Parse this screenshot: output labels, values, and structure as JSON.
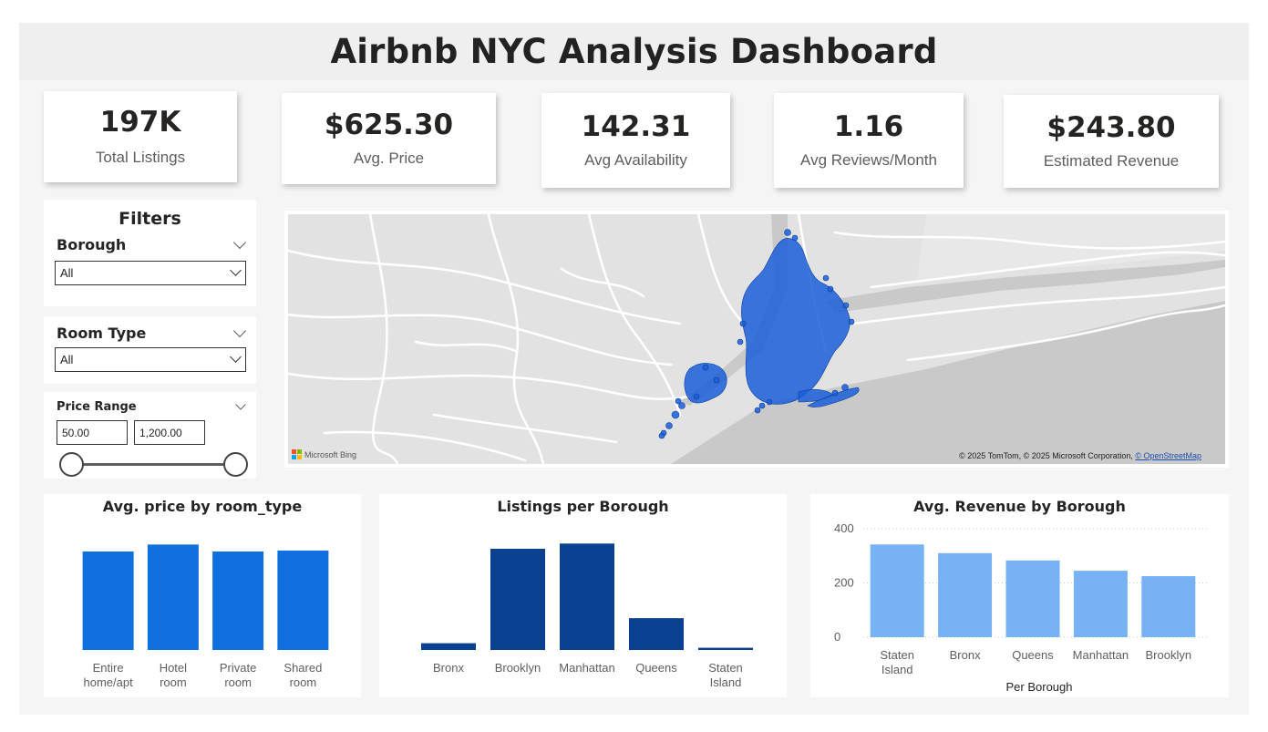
{
  "header": {
    "title": "Airbnb NYC Analysis Dashboard"
  },
  "kpis": [
    {
      "value": "197K",
      "label": "Total Listings"
    },
    {
      "value": "$625.30",
      "label": "Avg. Price"
    },
    {
      "value": "142.31",
      "label": "Avg Availability"
    },
    {
      "value": "1.16",
      "label": "Avg Reviews/Month"
    },
    {
      "value": "$243.80",
      "label": "Estimated Revenue"
    }
  ],
  "filters": {
    "title": "Filters",
    "borough": {
      "label": "Borough",
      "selected": "All"
    },
    "room_type": {
      "label": "Room Type",
      "selected": "All"
    },
    "price_range": {
      "label": "Price Range",
      "min": "50.00",
      "max": "1,200.00"
    }
  },
  "map": {
    "provider": "Microsoft Bing",
    "attribution": "© 2025 TomTom, © 2025 Microsoft Corporation, ",
    "attribution_link": "© OpenStreetMap",
    "point_color": "#1a5ed8"
  },
  "chart_data": [
    {
      "type": "bar",
      "title": "Avg. price by room_type",
      "categories": [
        "Entire home/apt",
        "Hotel room",
        "Private room",
        "Shared room"
      ],
      "category_lines": [
        [
          "Entire",
          "home/apt"
        ],
        [
          "Hotel",
          "room"
        ],
        [
          "Private",
          "room"
        ],
        [
          "Shared",
          "room"
        ]
      ],
      "values": [
        625,
        669,
        625,
        631
      ],
      "ylim": [
        0,
        700
      ],
      "color": "#1170e0",
      "y_axis_visible": false
    },
    {
      "type": "bar",
      "title": "Listings per Borough",
      "categories": [
        "Bronx",
        "Brooklyn",
        "Manhattan",
        "Queens",
        "Staten Island"
      ],
      "category_lines": [
        [
          "Bronx"
        ],
        [
          "Brooklyn"
        ],
        [
          "Manhattan"
        ],
        [
          "Queens"
        ],
        [
          "Staten",
          "Island"
        ]
      ],
      "values": [
        5200,
        78000,
        82000,
        24500,
        1700
      ],
      "ylim": [
        0,
        85000
      ],
      "color": "#0a4190",
      "y_axis_visible": false
    },
    {
      "type": "bar",
      "title": "Avg. Revenue by Borough",
      "categories": [
        "Staten Island",
        "Bronx",
        "Queens",
        "Manhattan",
        "Brooklyn"
      ],
      "category_lines": [
        [
          "Staten",
          "Island"
        ],
        [
          "Bronx"
        ],
        [
          "Queens"
        ],
        [
          "Manhattan"
        ],
        [
          "Brooklyn"
        ]
      ],
      "values": [
        342,
        310,
        283,
        245,
        225
      ],
      "ylim": [
        0,
        400
      ],
      "yticks": [
        0,
        200,
        400
      ],
      "xlabel": "Per Borough",
      "color": "#76b2f4",
      "grid": true,
      "y_axis_visible": true
    }
  ]
}
